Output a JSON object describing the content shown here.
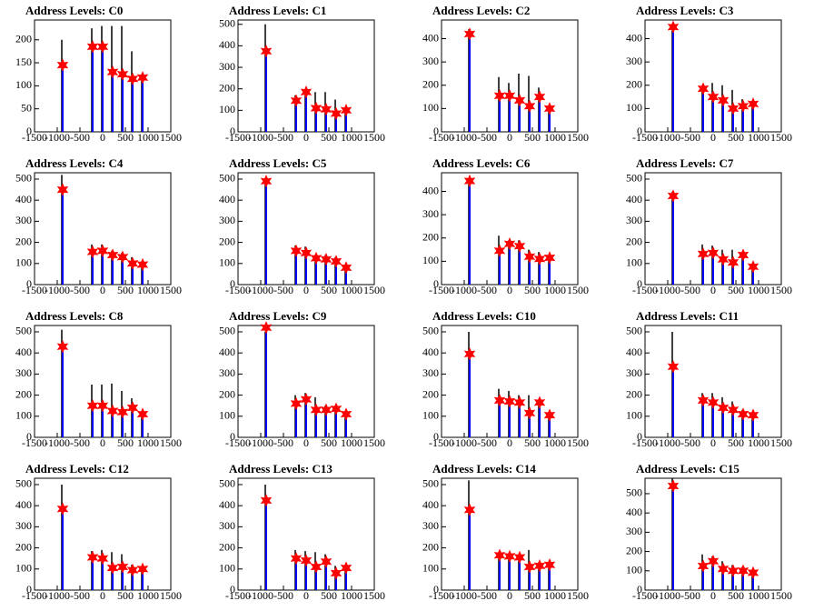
{
  "chart_data": [
    {
      "type": "spike",
      "title": "Address Levels: C0",
      "x": [
        -880,
        -220,
        0,
        220,
        440,
        660,
        880
      ],
      "spike_values": [
        200,
        225,
        230,
        230,
        230,
        175,
        125
      ],
      "marker_values": [
        145,
        185,
        185,
        130,
        125,
        115,
        118
      ],
      "spike_color": "#000000",
      "line_color": "#0000ff",
      "marker_color": "#ff0000",
      "xlim": [
        -1500,
        1500
      ],
      "xticks": [
        -1500,
        -1000,
        -500,
        0,
        500,
        1000,
        1500
      ],
      "ylim": [
        0,
        243
      ],
      "yticks": [
        0,
        50,
        100,
        150,
        200
      ]
    },
    {
      "type": "spike",
      "title": "Address Levels: C1",
      "x": [
        -880,
        -220,
        0,
        220,
        440,
        660,
        880
      ],
      "spike_values": [
        500,
        170,
        200,
        185,
        185,
        150,
        110
      ],
      "marker_values": [
        375,
        145,
        185,
        110,
        105,
        85,
        100
      ],
      "spike_color": "#000000",
      "line_color": "#0000ff",
      "marker_color": "#ff0000",
      "xlim": [
        -1500,
        1500
      ],
      "xticks": [
        -1500,
        -1000,
        -500,
        0,
        500,
        1000,
        1500
      ],
      "ylim": [
        0,
        520
      ],
      "yticks": [
        0,
        100,
        200,
        300,
        400,
        500
      ]
    },
    {
      "type": "spike",
      "title": "Address Levels: C2",
      "x": [
        -880,
        -220,
        0,
        220,
        440,
        660,
        880
      ],
      "spike_values": [
        440,
        235,
        210,
        250,
        240,
        190,
        110
      ],
      "marker_values": [
        420,
        155,
        155,
        135,
        110,
        150,
        100
      ],
      "spike_color": "#000000",
      "line_color": "#0000ff",
      "marker_color": "#ff0000",
      "xlim": [
        -1500,
        1500
      ],
      "xticks": [
        -1500,
        -1000,
        -500,
        0,
        500,
        1000,
        1500
      ],
      "ylim": [
        0,
        480
      ],
      "yticks": [
        0,
        100,
        200,
        300,
        400
      ]
    },
    {
      "type": "spike",
      "title": "Address Levels: C3",
      "x": [
        -880,
        -220,
        0,
        220,
        440,
        660,
        880
      ],
      "spike_values": [
        440,
        190,
        210,
        200,
        180,
        140,
        130
      ],
      "marker_values": [
        450,
        185,
        150,
        135,
        100,
        110,
        120
      ],
      "spike_color": "#000000",
      "line_color": "#0000ff",
      "marker_color": "#ff0000",
      "xlim": [
        -1500,
        1500
      ],
      "xticks": [
        -1500,
        -1000,
        -500,
        0,
        500,
        1000,
        1500
      ],
      "ylim": [
        0,
        480
      ],
      "yticks": [
        0,
        100,
        200,
        300,
        400
      ]
    },
    {
      "type": "spike",
      "title": "Address Levels: C4",
      "x": [
        -880,
        -220,
        0,
        220,
        440,
        660,
        880
      ],
      "spike_values": [
        520,
        190,
        190,
        160,
        150,
        130,
        100
      ],
      "marker_values": [
        450,
        155,
        160,
        140,
        130,
        100,
        95
      ],
      "spike_color": "#000000",
      "line_color": "#0000ff",
      "marker_color": "#ff0000",
      "xlim": [
        -1500,
        1500
      ],
      "xticks": [
        -1500,
        -1000,
        -500,
        0,
        500,
        1000,
        1500
      ],
      "ylim": [
        0,
        530
      ],
      "yticks": [
        0,
        100,
        200,
        300,
        400,
        500
      ]
    },
    {
      "type": "spike",
      "title": "Address Levels: C5",
      "x": [
        -880,
        -220,
        0,
        220,
        440,
        660,
        880
      ],
      "spike_values": [
        490,
        185,
        180,
        140,
        140,
        130,
        95
      ],
      "marker_values": [
        490,
        160,
        150,
        125,
        120,
        110,
        80
      ],
      "spike_color": "#000000",
      "line_color": "#0000ff",
      "marker_color": "#ff0000",
      "xlim": [
        -1500,
        1500
      ],
      "xticks": [
        -1500,
        -1000,
        -500,
        0,
        500,
        1000,
        1500
      ],
      "ylim": [
        0,
        530
      ],
      "yticks": [
        0,
        100,
        200,
        300,
        400,
        500
      ]
    },
    {
      "type": "spike",
      "title": "Address Levels: C6",
      "x": [
        -880,
        -220,
        0,
        220,
        440,
        660,
        880
      ],
      "spike_values": [
        440,
        210,
        190,
        190,
        150,
        140,
        125
      ],
      "marker_values": [
        445,
        145,
        175,
        165,
        120,
        110,
        115
      ],
      "spike_color": "#000000",
      "line_color": "#0000ff",
      "marker_color": "#ff0000",
      "xlim": [
        -1500,
        1500
      ],
      "xticks": [
        -1500,
        -1000,
        -500,
        0,
        500,
        1000,
        1500
      ],
      "ylim": [
        0,
        480
      ],
      "yticks": [
        0,
        100,
        200,
        300,
        400
      ]
    },
    {
      "type": "spike",
      "title": "Address Levels: C7",
      "x": [
        -880,
        -220,
        0,
        220,
        440,
        660,
        880
      ],
      "spike_values": [
        440,
        190,
        185,
        165,
        165,
        150,
        95
      ],
      "marker_values": [
        420,
        145,
        150,
        120,
        105,
        140,
        85
      ],
      "spike_color": "#000000",
      "line_color": "#0000ff",
      "marker_color": "#ff0000",
      "xlim": [
        -1500,
        1500
      ],
      "xticks": [
        -1500,
        -1000,
        -500,
        0,
        500,
        1000,
        1500
      ],
      "ylim": [
        0,
        530
      ],
      "yticks": [
        0,
        100,
        200,
        300,
        400,
        500
      ]
    },
    {
      "type": "spike",
      "title": "Address Levels: C8",
      "x": [
        -880,
        -220,
        0,
        220,
        440,
        660,
        880
      ],
      "spike_values": [
        510,
        250,
        250,
        255,
        220,
        185,
        120
      ],
      "marker_values": [
        430,
        150,
        150,
        125,
        120,
        140,
        110
      ],
      "spike_color": "#000000",
      "line_color": "#0000ff",
      "marker_color": "#ff0000",
      "xlim": [
        -1500,
        1500
      ],
      "xticks": [
        -1500,
        -1000,
        -500,
        0,
        500,
        1000,
        1500
      ],
      "ylim": [
        0,
        530
      ],
      "yticks": [
        0,
        100,
        200,
        300,
        400,
        500
      ]
    },
    {
      "type": "spike",
      "title": "Address Levels: C9",
      "x": [
        -880,
        -220,
        0,
        220,
        440,
        660,
        880
      ],
      "spike_values": [
        500,
        200,
        210,
        190,
        150,
        150,
        120
      ],
      "marker_values": [
        520,
        160,
        180,
        130,
        130,
        135,
        110
      ],
      "spike_color": "#000000",
      "line_color": "#0000ff",
      "marker_color": "#ff0000",
      "xlim": [
        -1500,
        1500
      ],
      "xticks": [
        -1500,
        -1000,
        -500,
        0,
        500,
        1000,
        1500
      ],
      "ylim": [
        0,
        530
      ],
      "yticks": [
        0,
        100,
        200,
        300,
        400,
        500
      ]
    },
    {
      "type": "spike",
      "title": "Address Levels: C10",
      "x": [
        -880,
        -220,
        0,
        220,
        440,
        660,
        880
      ],
      "spike_values": [
        500,
        230,
        220,
        200,
        200,
        180,
        120
      ],
      "marker_values": [
        395,
        175,
        170,
        165,
        115,
        165,
        105
      ],
      "spike_color": "#000000",
      "line_color": "#0000ff",
      "marker_color": "#ff0000",
      "xlim": [
        -1500,
        1500
      ],
      "xticks": [
        -1500,
        -1000,
        -500,
        0,
        500,
        1000,
        1500
      ],
      "ylim": [
        0,
        530
      ],
      "yticks": [
        0,
        100,
        200,
        300,
        400,
        500
      ]
    },
    {
      "type": "spike",
      "title": "Address Levels: C11",
      "x": [
        -880,
        -220,
        0,
        220,
        440,
        660,
        880
      ],
      "spike_values": [
        500,
        210,
        210,
        190,
        170,
        130,
        115
      ],
      "marker_values": [
        335,
        175,
        165,
        140,
        130,
        110,
        105
      ],
      "spike_color": "#000000",
      "line_color": "#0000ff",
      "marker_color": "#ff0000",
      "xlim": [
        -1500,
        1500
      ],
      "xticks": [
        -1500,
        -1000,
        -500,
        0,
        500,
        1000,
        1500
      ],
      "ylim": [
        0,
        530
      ],
      "yticks": [
        0,
        100,
        200,
        300,
        400,
        500
      ]
    },
    {
      "type": "spike",
      "title": "Address Levels: C12",
      "x": [
        -880,
        -220,
        0,
        220,
        440,
        660,
        880
      ],
      "spike_values": [
        500,
        185,
        190,
        180,
        170,
        120,
        110
      ],
      "marker_values": [
        385,
        155,
        150,
        105,
        110,
        95,
        100
      ],
      "spike_color": "#000000",
      "line_color": "#0000ff",
      "marker_color": "#ff0000",
      "xlim": [
        -1500,
        1500
      ],
      "xticks": [
        -1500,
        -1000,
        -500,
        0,
        500,
        1000,
        1500
      ],
      "ylim": [
        0,
        530
      ],
      "yticks": [
        0,
        100,
        200,
        300,
        400,
        500
      ]
    },
    {
      "type": "spike",
      "title": "Address Levels: C13",
      "x": [
        -880,
        -220,
        0,
        220,
        440,
        660,
        880
      ],
      "spike_values": [
        500,
        190,
        185,
        180,
        170,
        115,
        110
      ],
      "marker_values": [
        425,
        150,
        140,
        110,
        135,
        80,
        105
      ],
      "spike_color": "#000000",
      "line_color": "#0000ff",
      "marker_color": "#ff0000",
      "xlim": [
        -1500,
        1500
      ],
      "xticks": [
        -1500,
        -1000,
        -500,
        0,
        500,
        1000,
        1500
      ],
      "ylim": [
        0,
        530
      ],
      "yticks": [
        0,
        100,
        200,
        300,
        400,
        500
      ]
    },
    {
      "type": "spike",
      "title": "Address Levels: C14",
      "x": [
        -880,
        -220,
        0,
        220,
        440,
        660,
        880
      ],
      "spike_values": [
        520,
        175,
        165,
        165,
        190,
        130,
        125
      ],
      "marker_values": [
        380,
        165,
        160,
        155,
        110,
        115,
        120
      ],
      "spike_color": "#000000",
      "line_color": "#0000ff",
      "marker_color": "#ff0000",
      "xlim": [
        -1500,
        1500
      ],
      "xticks": [
        -1500,
        -1000,
        -500,
        0,
        500,
        1000,
        1500
      ],
      "ylim": [
        0,
        530
      ],
      "yticks": [
        0,
        100,
        200,
        300,
        400,
        500
      ]
    },
    {
      "type": "spike",
      "title": "Address Levels: C15",
      "x": [
        -880,
        -220,
        0,
        220,
        440,
        660,
        880
      ],
      "spike_values": [
        580,
        185,
        175,
        150,
        130,
        120,
        100
      ],
      "marker_values": [
        540,
        125,
        150,
        110,
        100,
        100,
        90
      ],
      "spike_color": "#000000",
      "line_color": "#0000ff",
      "marker_color": "#ff0000",
      "xlim": [
        -1500,
        1500
      ],
      "xticks": [
        -1500,
        -1000,
        -500,
        0,
        500,
        1000,
        1500
      ],
      "ylim": [
        0,
        580
      ],
      "yticks": [
        0,
        100,
        200,
        300,
        400,
        500
      ]
    }
  ]
}
